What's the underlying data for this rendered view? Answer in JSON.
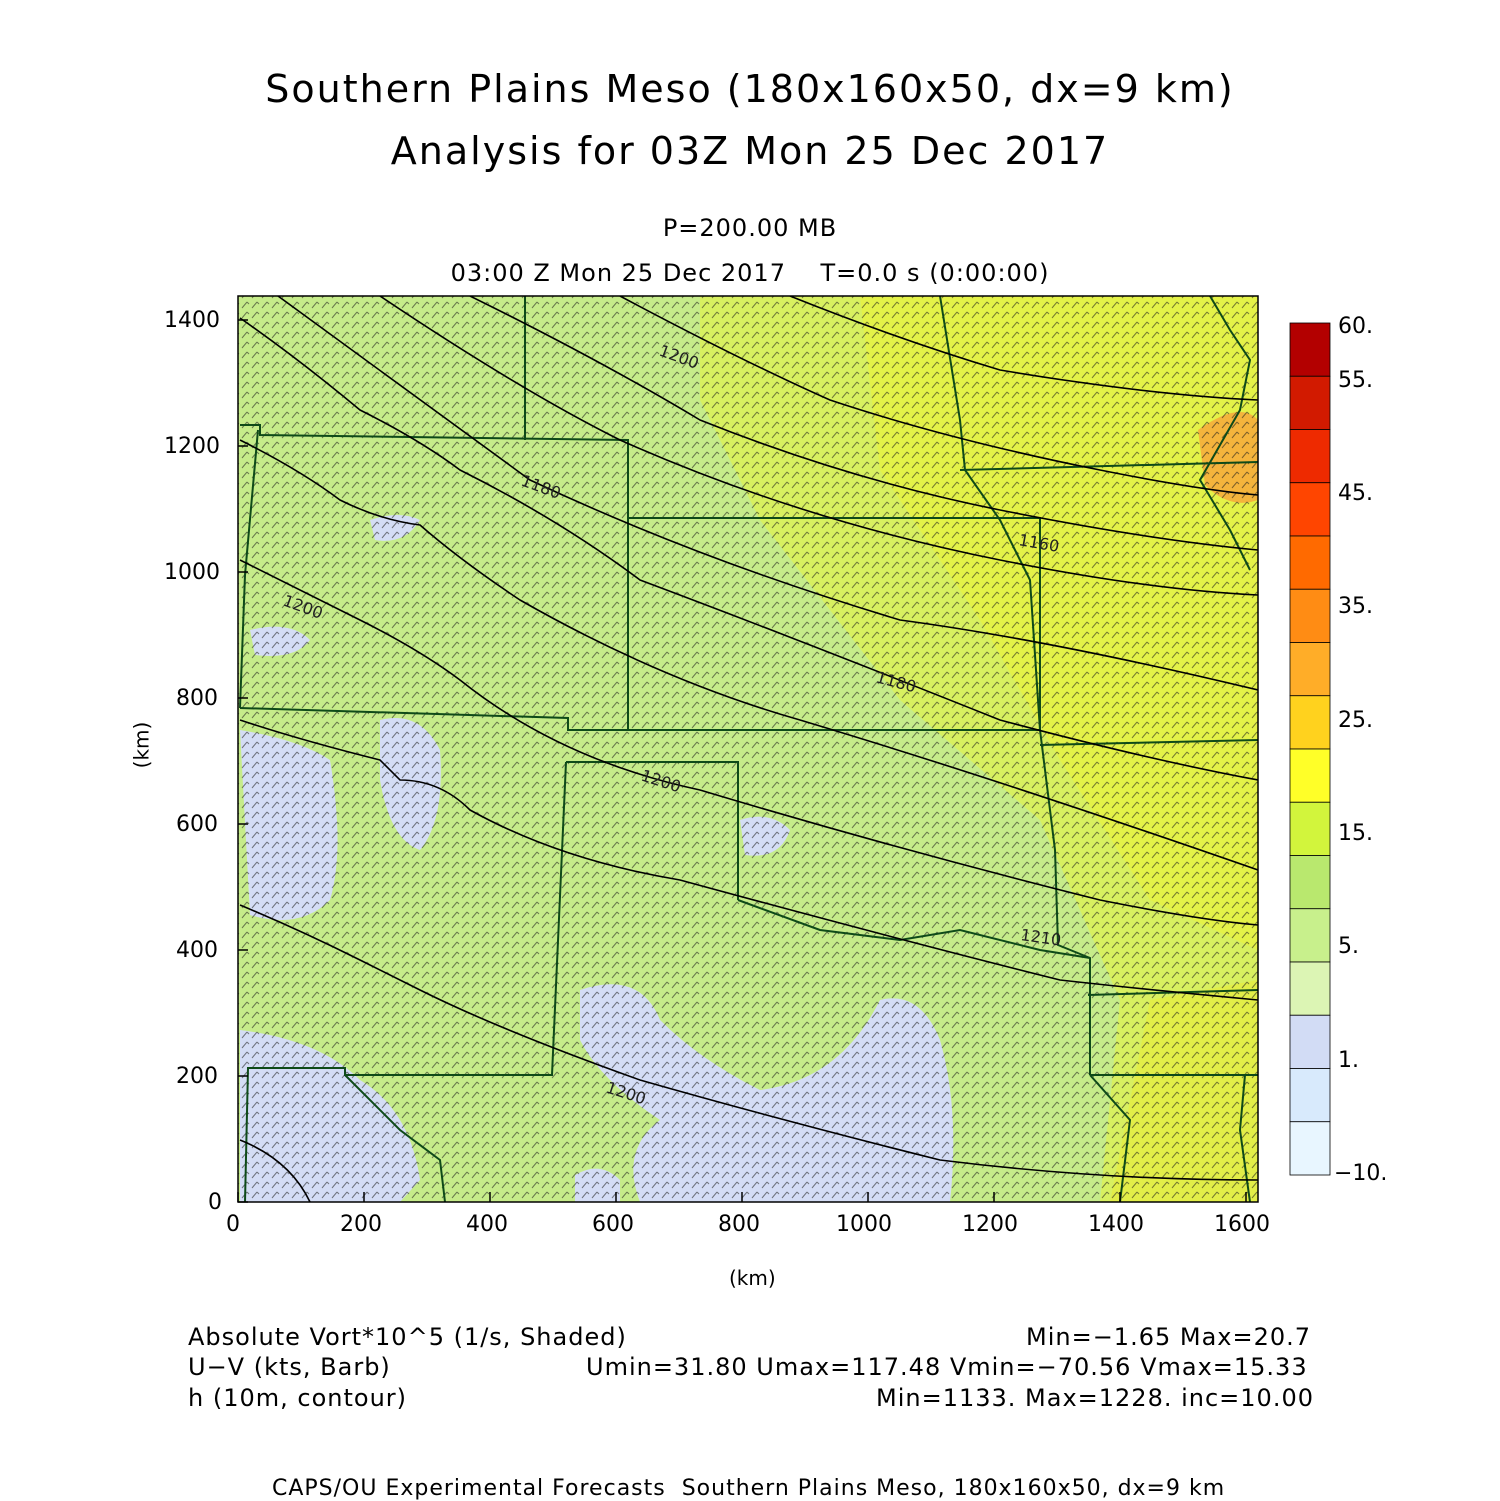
{
  "header": {
    "title_line1": "Southern Plains Meso (180x160x50, dx=9 km)",
    "title_line2": "Analysis for 03Z Mon 25 Dec 2017",
    "level": "P=200.00 MB",
    "time": "03:00 Z Mon 25 Dec 2017    T=0.0 s (0:00:00)"
  },
  "axes": {
    "x_label": "(km)",
    "y_label": "(km)",
    "x_ticks": [
      "0",
      "200",
      "400",
      "600",
      "800",
      "1000",
      "1200",
      "1400",
      "1600"
    ],
    "y_ticks": [
      "0",
      "200",
      "400",
      "600",
      "800",
      "1000",
      "1200",
      "1400"
    ],
    "x_range_km": [
      0,
      1620
    ],
    "y_range_km": [
      0,
      1440
    ]
  },
  "colorbar": {
    "labels": [
      "60.",
      "55.",
      "45.",
      "35.",
      "25.",
      "15.",
      "5.",
      "1.",
      "−10."
    ],
    "colors": [
      "#b30000",
      "#d21a00",
      "#ee2a00",
      "#ff4500",
      "#ff6a00",
      "#ff8c14",
      "#ffad28",
      "#ffd21e",
      "#ffff28",
      "#d2f53c",
      "#b9e86e",
      "#c8f08c",
      "#dcf5b4",
      "#d2dcf5",
      "#d8eafc",
      "#e8f6ff"
    ]
  },
  "contour_labels": [
    "1200",
    "1160",
    "1180",
    "1200",
    "1180",
    "1200",
    "1210",
    "1200",
    "1160"
  ],
  "legend": {
    "field1_name": "Absolute Vort*10^5 (1/s, Shaded)",
    "field1_stats": "Min=−1.65 Max=20.7",
    "field2_name": "U−V (kts, Barb)",
    "field2_stats": "Umin=31.80 Umax=117.48 Vmin=−70.56 Vmax=15.33",
    "field3_name": "h (10m, contour)",
    "field3_stats": "Min=1133. Max=1228. inc=10.00"
  },
  "footer": "CAPS/OU Experimental Forecasts  Southern Plains Meso, 180x160x50, dx=9 km"
}
